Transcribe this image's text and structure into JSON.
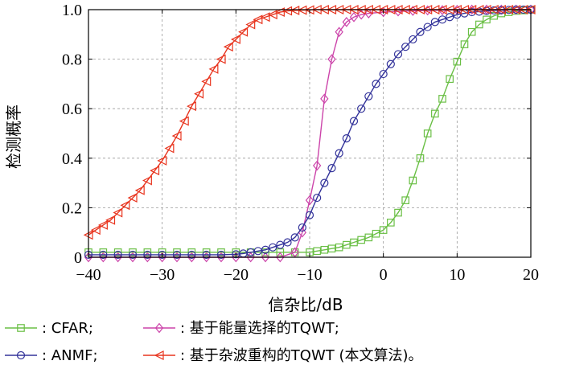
{
  "chart_data": {
    "type": "line",
    "xlabel": "信杂比/dB",
    "ylabel": "检测概率",
    "xlim": [
      -40,
      20
    ],
    "ylim": [
      0,
      1
    ],
    "xticks": [
      -40,
      -30,
      -20,
      -10,
      0,
      10,
      20
    ],
    "yticks": [
      0,
      0.2,
      0.4,
      0.6,
      0.8,
      1.0
    ],
    "xtick_labels": [
      "−40",
      "−30",
      "−20",
      "−10",
      "0",
      "10",
      "20"
    ],
    "ytick_labels": [
      "0",
      "0.2",
      "0.4",
      "0.6",
      "0.8",
      "1.0"
    ],
    "grid": "dashed",
    "legend_position": "bottom",
    "series": [
      {
        "name": ": CFAR;",
        "color": "#6abf45",
        "marker": "square",
        "x": [
          -40,
          -38,
          -36,
          -34,
          -32,
          -30,
          -28,
          -26,
          -24,
          -22,
          -20,
          -18,
          -16,
          -14,
          -12,
          -10,
          -9,
          -8,
          -7,
          -6,
          -5,
          -4,
          -3,
          -2,
          -1,
          0,
          1,
          2,
          3,
          4,
          5,
          6,
          7,
          8,
          9,
          10,
          11,
          12,
          13,
          14,
          15,
          16,
          17,
          18,
          19,
          20
        ],
        "y": [
          0.02,
          0.02,
          0.02,
          0.02,
          0.02,
          0.02,
          0.02,
          0.02,
          0.02,
          0.02,
          0.02,
          0.02,
          0.02,
          0.02,
          0.02,
          0.02,
          0.025,
          0.03,
          0.035,
          0.04,
          0.05,
          0.06,
          0.07,
          0.08,
          0.095,
          0.11,
          0.14,
          0.18,
          0.23,
          0.31,
          0.4,
          0.5,
          0.58,
          0.64,
          0.72,
          0.79,
          0.86,
          0.91,
          0.94,
          0.96,
          0.975,
          0.985,
          0.99,
          0.995,
          0.997,
          1.0
        ]
      },
      {
        "name": ": 基于能量选择的TQWT;",
        "color": "#cc44aa",
        "marker": "diamond",
        "x": [
          -40,
          -38,
          -36,
          -34,
          -32,
          -30,
          -28,
          -26,
          -24,
          -22,
          -20,
          -18,
          -16,
          -14,
          -12,
          -11,
          -10,
          -9,
          -8,
          -7,
          -6,
          -5,
          -4,
          -3,
          -2,
          0,
          2,
          4,
          6,
          8,
          10,
          12,
          14,
          16,
          18,
          20
        ],
        "y": [
          0,
          0,
          0,
          0,
          0,
          0,
          0,
          0,
          0,
          0,
          0,
          0,
          0,
          0,
          0.02,
          0.1,
          0.23,
          0.37,
          0.64,
          0.8,
          0.91,
          0.95,
          0.97,
          0.98,
          0.985,
          0.99,
          0.993,
          0.995,
          0.997,
          0.998,
          0.999,
          1.0,
          1.0,
          1.0,
          1.0,
          1.0
        ]
      },
      {
        "name": ": ANMF;",
        "color": "#33339a",
        "marker": "circle",
        "x": [
          -40,
          -38,
          -36,
          -34,
          -32,
          -30,
          -28,
          -26,
          -24,
          -22,
          -20,
          -19,
          -18,
          -17,
          -16,
          -15,
          -14,
          -13,
          -12,
          -11,
          -10,
          -9,
          -8,
          -7,
          -6,
          -5,
          -4,
          -3,
          -2,
          -1,
          0,
          1,
          2,
          3,
          4,
          5,
          6,
          7,
          8,
          9,
          10,
          11,
          12,
          13,
          14,
          15,
          16,
          17,
          18,
          19,
          20
        ],
        "y": [
          0.01,
          0.01,
          0.01,
          0.01,
          0.01,
          0.01,
          0.01,
          0.01,
          0.01,
          0.01,
          0.012,
          0.015,
          0.02,
          0.025,
          0.03,
          0.04,
          0.05,
          0.06,
          0.08,
          0.12,
          0.17,
          0.24,
          0.3,
          0.36,
          0.42,
          0.48,
          0.55,
          0.6,
          0.65,
          0.7,
          0.74,
          0.78,
          0.82,
          0.85,
          0.88,
          0.91,
          0.93,
          0.95,
          0.96,
          0.97,
          0.98,
          0.985,
          0.99,
          0.992,
          0.995,
          0.997,
          0.998,
          0.999,
          1.0,
          1.0,
          1.0
        ]
      },
      {
        "name": ": 基于杂波重构的TQWT (本文算法)。",
        "color": "#e8351f",
        "marker": "triangle-left",
        "x": [
          -40,
          -39,
          -38,
          -37,
          -36,
          -35,
          -34,
          -33,
          -32,
          -31,
          -30,
          -29,
          -28,
          -27,
          -26,
          -25,
          -24,
          -23,
          -22,
          -21,
          -20,
          -19,
          -18,
          -17,
          -16,
          -15,
          -14,
          -13,
          -12,
          -11,
          -10,
          -9,
          -8,
          -7,
          -6,
          -5,
          -4,
          -3,
          -2,
          -1,
          0,
          1,
          2,
          3,
          4,
          5,
          6,
          7,
          8,
          9,
          10,
          11,
          12,
          13,
          14,
          15,
          16,
          17,
          18,
          19,
          20
        ],
        "y": [
          0.09,
          0.11,
          0.13,
          0.15,
          0.18,
          0.21,
          0.24,
          0.27,
          0.31,
          0.35,
          0.39,
          0.44,
          0.49,
          0.55,
          0.61,
          0.66,
          0.71,
          0.76,
          0.8,
          0.85,
          0.88,
          0.91,
          0.94,
          0.96,
          0.97,
          0.98,
          0.99,
          0.995,
          0.997,
          0.998,
          0.999,
          1.0,
          1.0,
          1.0,
          1.0,
          1.0,
          1.0,
          1.0,
          1.0,
          1.0,
          1.0,
          1.0,
          1.0,
          1.0,
          1.0,
          1.0,
          1.0,
          1.0,
          1.0,
          1.0,
          1.0,
          1.0,
          1.0,
          1.0,
          1.0,
          1.0,
          1.0,
          1.0,
          1.0,
          1.0,
          1.0
        ]
      }
    ]
  }
}
